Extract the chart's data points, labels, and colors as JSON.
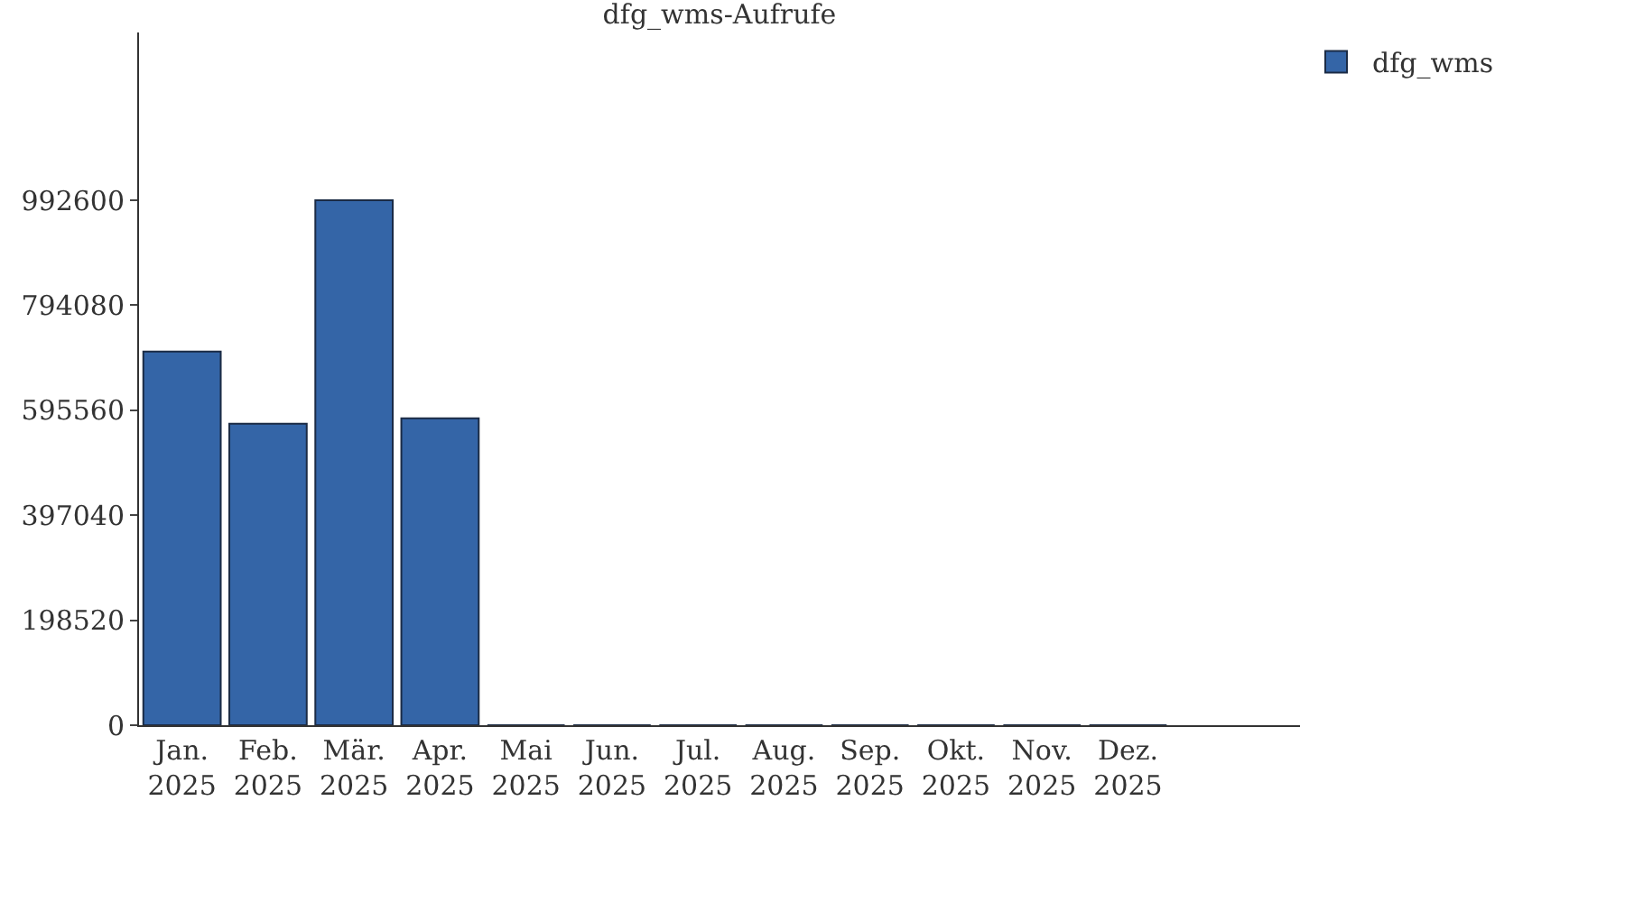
{
  "chart_data": {
    "type": "bar",
    "title": "dfg_wms-Aufrufe",
    "categories": [
      "Jan.\n2025",
      "Feb.\n2025",
      "Mär.\n2025",
      "Apr.\n2025",
      "Mai\n2025",
      "Jun.\n2025",
      "Jul.\n2025",
      "Aug.\n2025",
      "Sep.\n2025",
      "Okt.\n2025",
      "Nov.\n2025",
      "Dez.\n2025"
    ],
    "series": [
      {
        "name": "dfg_wms",
        "color": "#3465a7",
        "values": [
          706500,
          570200,
          992600,
          580400,
          0,
          0,
          0,
          0,
          0,
          0,
          0,
          0
        ]
      }
    ],
    "ylim": [
      0,
      1310000
    ],
    "yticks": [
      0,
      198520,
      397040,
      595560,
      794080,
      992600
    ],
    "grid": false,
    "legend": "top right"
  }
}
